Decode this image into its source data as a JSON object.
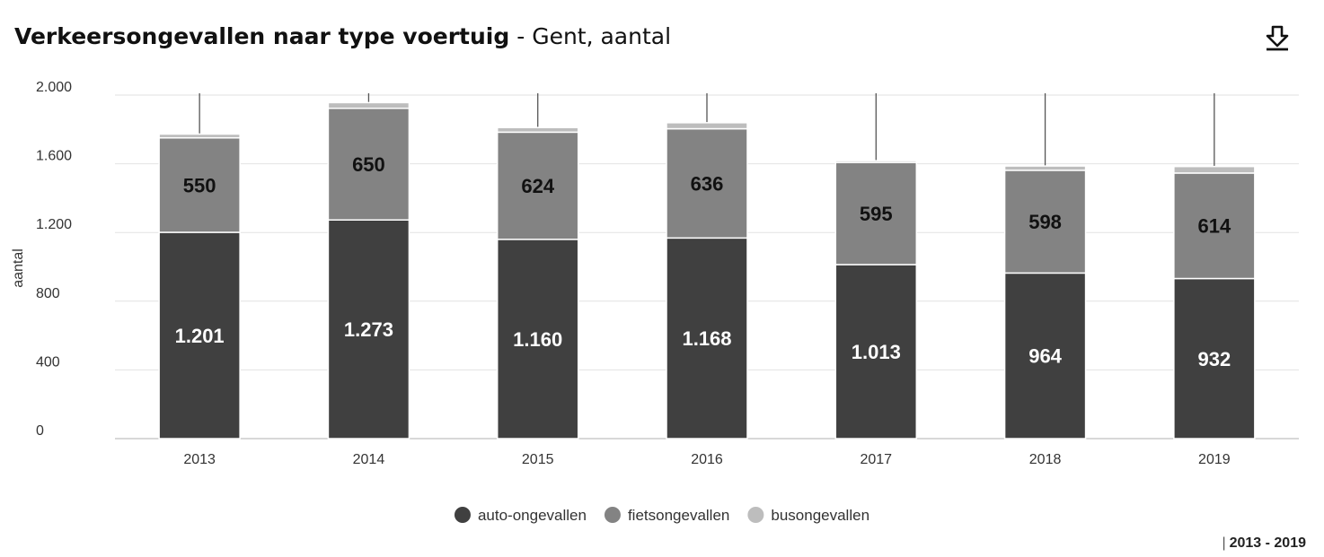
{
  "title": {
    "bold": "Verkeersongevallen naar type voertuig",
    "rest": " - Gent, aantal"
  },
  "footer": {
    "bar": "|",
    "range": "2013 - 2019"
  },
  "icons": {
    "download": "download-icon"
  },
  "chart_data": {
    "type": "bar",
    "stacked": true,
    "ylabel": "aantal",
    "ylim": [
      0,
      2000
    ],
    "yticks": [
      0,
      400,
      800,
      1200,
      1600,
      2000
    ],
    "ytick_labels": [
      "0",
      "400",
      "800",
      "1.200",
      "1.600",
      "2.000"
    ],
    "grid": true,
    "legend": "bottom-center",
    "categories": [
      "2013",
      "2014",
      "2015",
      "2016",
      "2017",
      "2018",
      "2019"
    ],
    "series": [
      {
        "name": "auto-ongevallen",
        "color": "#404040",
        "values": [
          1201,
          1273,
          1160,
          1168,
          1013,
          964,
          932
        ],
        "labels": [
          "1.201",
          "1.273",
          "1.160",
          "1.168",
          "1.013",
          "964",
          "932"
        ]
      },
      {
        "name": "fietsongevallen",
        "color": "#838383",
        "values": [
          550,
          650,
          624,
          636,
          595,
          598,
          614
        ],
        "labels": [
          "550",
          "650",
          "624",
          "636",
          "595",
          "598",
          "614"
        ]
      },
      {
        "name": "busongevallen",
        "color": "#bdbdbd",
        "values": [
          22,
          33,
          27,
          35,
          10,
          25,
          38
        ],
        "labels": []
      }
    ]
  }
}
